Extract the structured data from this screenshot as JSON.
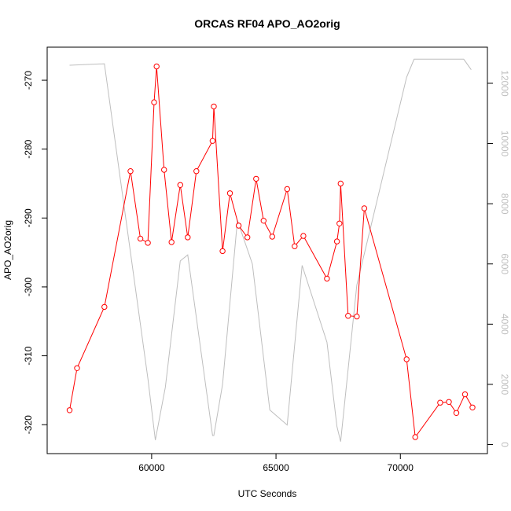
{
  "chart_data": {
    "type": "line",
    "title": "ORCAS RF04 APO_AO2orig",
    "xlabel": "UTC Seconds",
    "ylabel": "APO_AO2orig",
    "ylabel_right": "",
    "xlim": [
      55800,
      73500
    ],
    "ylim": [
      -324.2,
      -265.2
    ],
    "ylim_right": [
      -300,
      13200
    ],
    "x_ticks": [
      60000,
      65000,
      70000
    ],
    "y_ticks": [
      -320,
      -310,
      -300,
      -290,
      -280,
      -270
    ],
    "y_ticks_right": [
      0,
      2000,
      4000,
      6000,
      8000,
      10000,
      12000
    ],
    "grid": false,
    "series": [
      {
        "axis": "left",
        "color": "#ff0000",
        "markers": true,
        "x": [
          56700,
          57000,
          58100,
          59150,
          59550,
          59850,
          60100,
          60200,
          60500,
          60800,
          61150,
          61450,
          61800,
          62450,
          62500,
          62850,
          63150,
          63500,
          63850,
          64200,
          64500,
          64850,
          65450,
          65750,
          66100,
          67050,
          67450,
          67550,
          67600,
          67900,
          68250,
          68550,
          70250,
          70600,
          71600,
          71950,
          72250,
          72600,
          72900
        ],
        "y": [
          -317.9,
          -311.8,
          -302.9,
          -283.2,
          -293.0,
          -293.6,
          -273.2,
          -268.0,
          -283.0,
          -293.5,
          -285.2,
          -292.8,
          -283.2,
          -278.8,
          -273.8,
          -294.8,
          -286.4,
          -291.1,
          -292.8,
          -284.3,
          -290.4,
          -292.7,
          -285.8,
          -294.1,
          -292.6,
          -298.8,
          -293.4,
          -290.8,
          -285.0,
          -304.2,
          -304.3,
          -288.6,
          -310.5,
          -321.8,
          -316.8,
          -316.7,
          -318.3,
          -315.6,
          -317.5
        ]
      },
      {
        "axis": "right",
        "color": "#bebebe",
        "markers": false,
        "x": [
          56700,
          58100,
          59850,
          60150,
          60550,
          61150,
          61450,
          62450,
          62500,
          62850,
          63450,
          64050,
          64750,
          65450,
          66050,
          67050,
          67450,
          67600,
          68250,
          70250,
          70550,
          72550,
          72850
        ],
        "y": [
          12600,
          12650,
          2200,
          150,
          1900,
          6100,
          6300,
          300,
          300,
          2000,
          7450,
          6000,
          1150,
          650,
          5950,
          3400,
          600,
          100,
          5300,
          12200,
          12800,
          12800,
          12450
        ]
      }
    ]
  }
}
